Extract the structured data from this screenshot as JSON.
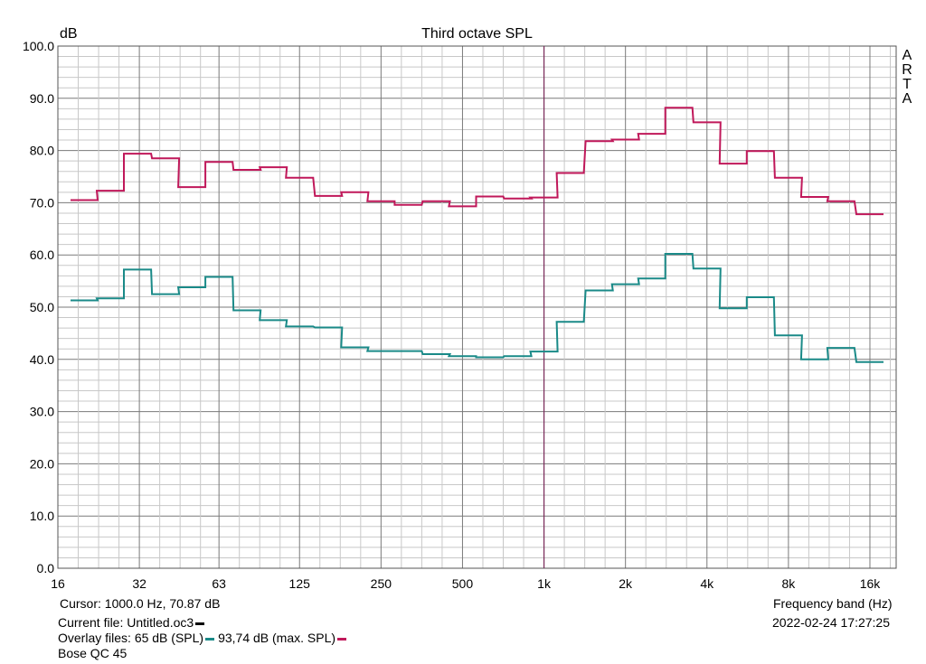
{
  "chart_data": {
    "type": "line",
    "title": "Third octave SPL",
    "ylabel": "dB",
    "xlabel": "Frequency band (Hz)",
    "watermark": "ARTA",
    "ylim": [
      0,
      100
    ],
    "y_ticks": [
      "0.0",
      "10.0",
      "20.0",
      "30.0",
      "40.0",
      "50.0",
      "60.0",
      "70.0",
      "80.0",
      "90.0",
      "100.0"
    ],
    "x_scale": "log",
    "xlim": [
      16,
      20000
    ],
    "x_ticks": [
      {
        "value": 16,
        "label": "16"
      },
      {
        "value": 32,
        "label": "32"
      },
      {
        "value": 63,
        "label": "63"
      },
      {
        "value": 125,
        "label": "125"
      },
      {
        "value": 250,
        "label": "250"
      },
      {
        "value": 500,
        "label": "500"
      },
      {
        "value": 1000,
        "label": "1k"
      },
      {
        "value": 2000,
        "label": "2k"
      },
      {
        "value": 4000,
        "label": "4k"
      },
      {
        "value": 8000,
        "label": "8k"
      },
      {
        "value": 16000,
        "label": "16k"
      }
    ],
    "bands": [
      20,
      25,
      31.5,
      40,
      50,
      63,
      80,
      100,
      125,
      160,
      200,
      250,
      315,
      400,
      500,
      630,
      800,
      1000,
      1250,
      1600,
      2000,
      2500,
      3150,
      4000,
      5000,
      6300,
      8000,
      10000,
      12500,
      16000
    ],
    "grid": true,
    "cursor_frequency": 1000,
    "series": [
      {
        "name": "93,74 dB (max. SPL)",
        "color": "#c0185a",
        "values": [
          70.5,
          72.3,
          79.4,
          78.5,
          73.0,
          77.8,
          76.3,
          76.8,
          74.8,
          71.3,
          72.0,
          70.3,
          69.6,
          70.3,
          69.3,
          71.2,
          70.8,
          71.0,
          75.7,
          81.8,
          82.1,
          83.2,
          88.2,
          85.4,
          77.5,
          79.9,
          74.8,
          71.1,
          70.3,
          67.8
        ]
      },
      {
        "name": "65 dB (SPL)",
        "color": "#1a8a88",
        "values": [
          51.3,
          51.7,
          57.2,
          52.5,
          53.8,
          55.8,
          49.4,
          47.5,
          46.3,
          46.1,
          42.3,
          41.6,
          41.6,
          41.0,
          40.6,
          40.4,
          40.6,
          41.5,
          47.2,
          53.2,
          54.4,
          55.5,
          60.2,
          57.4,
          49.8,
          51.9,
          44.6,
          40.0,
          42.2,
          39.5
        ]
      }
    ]
  },
  "footer": {
    "cursor_text": "Cursor:  1000.0 Hz, 70.87 dB",
    "current_file": "Current file: Untitled.oc3",
    "overlay_prefix": "Overlay files: ",
    "overlay_1": "65 dB (SPL)",
    "overlay_2": "93,74 dB (max. SPL)",
    "device": "Bose QC 45",
    "xlabel": "Frequency band (Hz)",
    "datetime": "2022-02-24   17:27:25"
  },
  "colors": {
    "current_file": "#000000",
    "overlay_1": "#1a8a88",
    "overlay_2": "#c0185a",
    "cursor_line": "#7a2a5a",
    "grid_major": "#7a7a7a",
    "grid_minor": "#c8c8c8"
  }
}
